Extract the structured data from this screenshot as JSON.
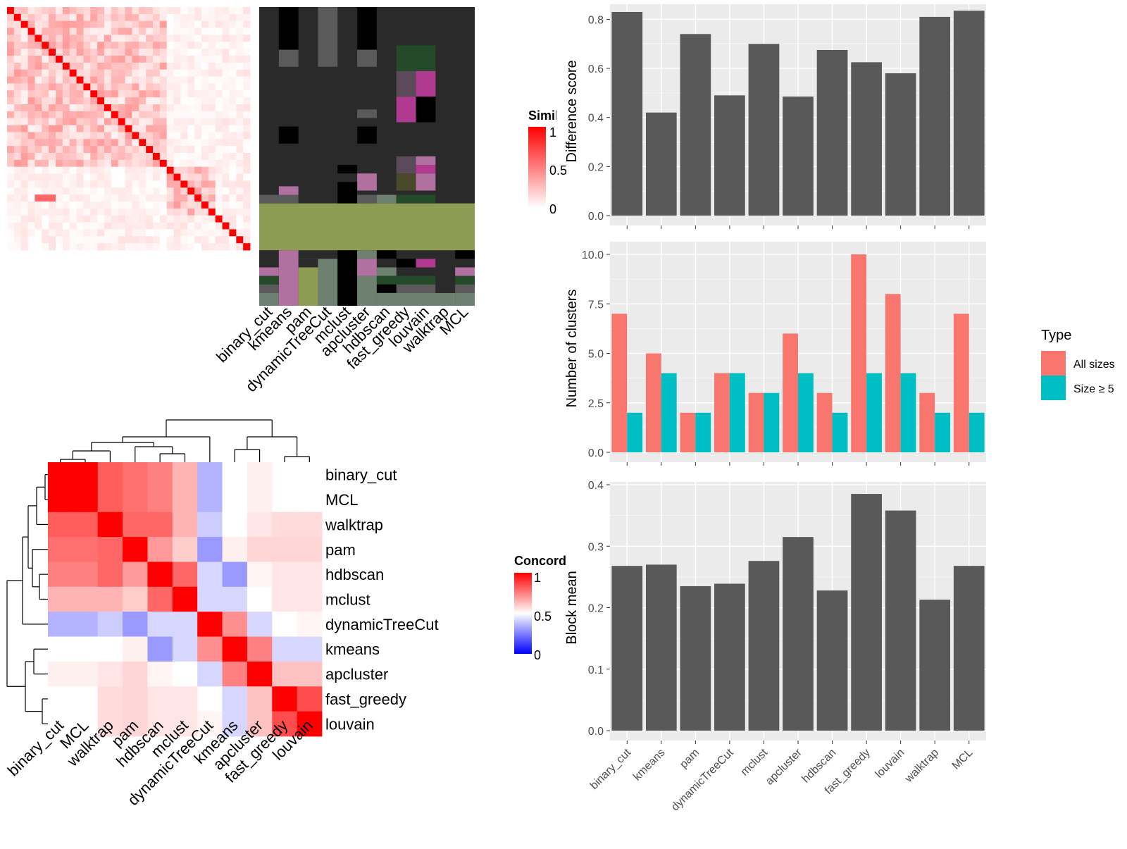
{
  "chart_data": [
    {
      "type": "heatmap",
      "title": "",
      "description_source": "similarity matrix (top-left), colour scale 0 to 1",
      "legend": {
        "title": "Similarity",
        "ticks": [
          "0",
          "0.5",
          "1"
        ],
        "colors": {
          "low": "#ffffff",
          "high": "#ff0000"
        }
      },
      "n": 35
    },
    {
      "type": "heatmap",
      "title": "",
      "column_labels": [
        "binary_cut",
        "kmeans",
        "pam",
        "dynamicTreeCut",
        "mclust",
        "apcluster",
        "hdbscan",
        "fast_greedy",
        "louvain",
        "walktrap",
        "MCL"
      ]
    },
    {
      "type": "heatmap",
      "title": "",
      "labels": [
        "binary_cut",
        "MCL",
        "walktrap",
        "pam",
        "hdbscan",
        "mclust",
        "dynamicTreeCut",
        "kmeans",
        "apcluster",
        "fast_greedy",
        "louvain"
      ],
      "values": [
        [
          1.0,
          1.0,
          0.82,
          0.78,
          0.75,
          0.65,
          0.35,
          0.5,
          0.53,
          0.5,
          0.5
        ],
        [
          1.0,
          1.0,
          0.82,
          0.78,
          0.75,
          0.65,
          0.35,
          0.5,
          0.53,
          0.5,
          0.5
        ],
        [
          0.82,
          0.82,
          1.0,
          0.8,
          0.8,
          0.65,
          0.4,
          0.5,
          0.55,
          0.57,
          0.57
        ],
        [
          0.78,
          0.78,
          0.8,
          1.0,
          0.7,
          0.6,
          0.3,
          0.53,
          0.58,
          0.58,
          0.58
        ],
        [
          0.75,
          0.75,
          0.8,
          0.7,
          1.0,
          0.8,
          0.42,
          0.3,
          0.52,
          0.55,
          0.55
        ],
        [
          0.65,
          0.65,
          0.65,
          0.6,
          0.8,
          1.0,
          0.42,
          0.42,
          0.5,
          0.55,
          0.55
        ],
        [
          0.35,
          0.35,
          0.4,
          0.3,
          0.42,
          0.42,
          1.0,
          0.72,
          0.42,
          0.5,
          0.52
        ],
        [
          0.5,
          0.5,
          0.5,
          0.53,
          0.3,
          0.42,
          0.72,
          1.0,
          0.75,
          0.42,
          0.42
        ],
        [
          0.53,
          0.53,
          0.55,
          0.58,
          0.52,
          0.5,
          0.42,
          0.75,
          1.0,
          0.62,
          0.62
        ],
        [
          0.5,
          0.5,
          0.57,
          0.58,
          0.55,
          0.55,
          0.5,
          0.42,
          0.62,
          1.0,
          0.85
        ],
        [
          0.5,
          0.5,
          0.57,
          0.58,
          0.55,
          0.55,
          0.52,
          0.42,
          0.62,
          0.85,
          1.0
        ]
      ],
      "legend": {
        "title": "Concordance",
        "ticks": [
          "0",
          "0.5",
          "1"
        ],
        "colors": {
          "low": "#0000ff",
          "mid": "#ffffff",
          "high": "#ff0000"
        }
      }
    },
    {
      "type": "bar",
      "categories": [
        "binary_cut",
        "kmeans",
        "pam",
        "dynamicTreeCut",
        "mclust",
        "apcluster",
        "hdbscan",
        "fast_greedy",
        "louvain",
        "walktrap",
        "MCL"
      ],
      "values": [
        0.83,
        0.42,
        0.74,
        0.49,
        0.7,
        0.485,
        0.675,
        0.625,
        0.58,
        0.81,
        0.835
      ],
      "ylabel": "Difference score",
      "ylim": [
        0,
        0.85
      ],
      "yticks": [
        "0.0",
        "0.2",
        "0.4",
        "0.6",
        "0.8"
      ],
      "color": "#595959"
    },
    {
      "type": "bar",
      "categories": [
        "binary_cut",
        "kmeans",
        "pam",
        "dynamicTreeCut",
        "mclust",
        "apcluster",
        "hdbscan",
        "fast_greedy",
        "louvain",
        "walktrap",
        "MCL"
      ],
      "series": [
        {
          "name": "All sizes",
          "values": [
            7,
            5,
            2,
            4,
            3,
            6,
            3,
            10,
            8,
            3,
            7
          ],
          "color": "#f8766d"
        },
        {
          "name": "Size ≥ 5",
          "values": [
            2,
            4,
            2,
            4,
            3,
            4,
            2,
            4,
            4,
            2,
            2
          ],
          "color": "#00bfc4"
        }
      ],
      "ylabel": "Number of clusters",
      "ylim": [
        0,
        10.5
      ],
      "yticks": [
        "0.0",
        "2.5",
        "5.0",
        "7.5",
        "10.0"
      ],
      "legend": {
        "title": "Type",
        "position": "right"
      }
    },
    {
      "type": "bar",
      "categories": [
        "binary_cut",
        "kmeans",
        "pam",
        "dynamicTreeCut",
        "mclust",
        "apcluster",
        "hdbscan",
        "fast_greedy",
        "louvain",
        "walktrap",
        "MCL"
      ],
      "values": [
        0.268,
        0.27,
        0.235,
        0.239,
        0.276,
        0.315,
        0.228,
        0.385,
        0.358,
        0.213,
        0.268
      ],
      "ylabel": "Block mean",
      "ylim": [
        0,
        0.4
      ],
      "yticks": [
        "0.0",
        "0.1",
        "0.2",
        "0.3",
        "0.4"
      ],
      "color": "#595959"
    }
  ],
  "labels": {
    "sim_legend_title": "Simila",
    "conc_legend_title": "Concord",
    "legend_1": "1",
    "legend_05": "0.5",
    "legend_0": "0",
    "type_legend_title": "Type",
    "type_all": "All sizes",
    "type_size": "Size ≥ 5"
  }
}
